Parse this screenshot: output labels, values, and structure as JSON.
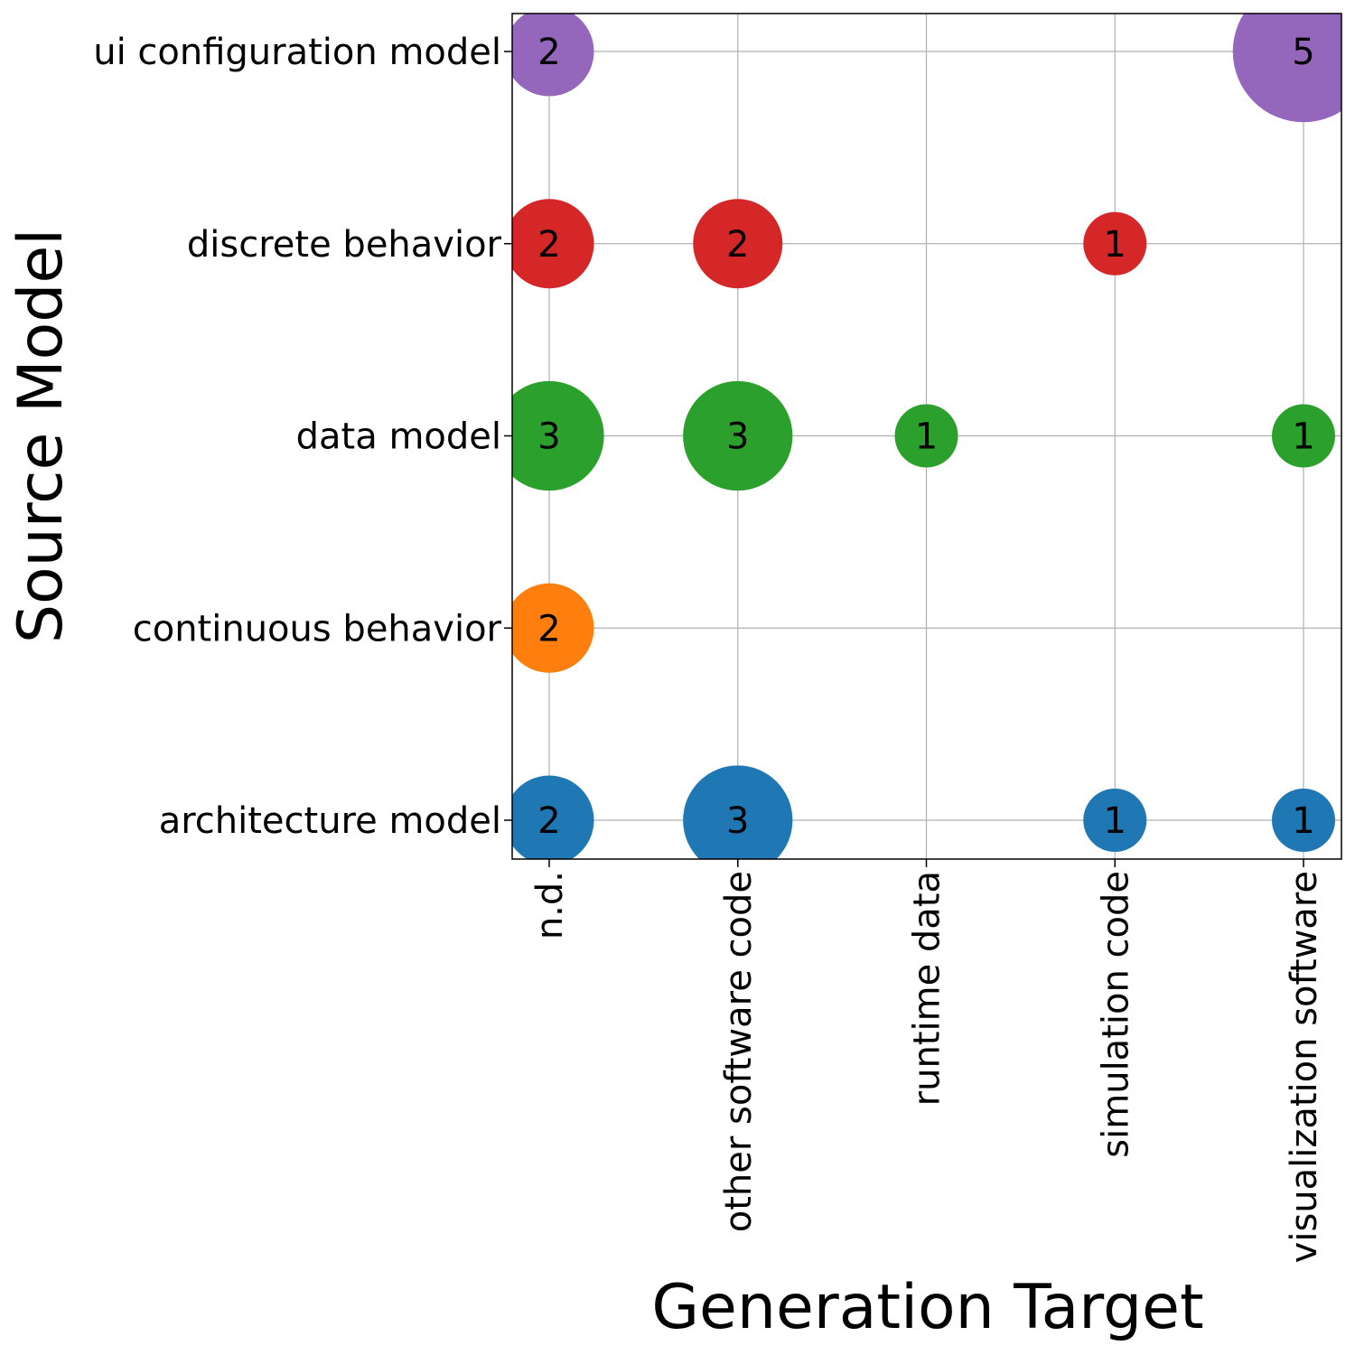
{
  "chart_data": {
    "type": "scatter",
    "xlabel": "Generation Target",
    "ylabel": "Source Model",
    "x_categories": [
      "n.d.",
      "other software code",
      "runtime data",
      "simulation code",
      "visualization software"
    ],
    "y_categories": [
      "architecture model",
      "continuous behavior",
      "data model",
      "discrete behavior",
      "ui configuration model"
    ],
    "grid": true,
    "colors": {
      "architecture model": "#1f77b4",
      "continuous behavior": "#ff7f0e",
      "data model": "#2ca02c",
      "discrete behavior": "#d62728",
      "ui configuration model": "#9467bd"
    },
    "points": [
      {
        "x": "n.d.",
        "y": "architecture model",
        "value": 2,
        "label": "2"
      },
      {
        "x": "other software code",
        "y": "architecture model",
        "value": 3,
        "label": "3"
      },
      {
        "x": "simulation code",
        "y": "architecture model",
        "value": 1,
        "label": "1"
      },
      {
        "x": "visualization software",
        "y": "architecture model",
        "value": 1,
        "label": "1"
      },
      {
        "x": "n.d.",
        "y": "continuous behavior",
        "value": 2,
        "label": "2"
      },
      {
        "x": "n.d.",
        "y": "data model",
        "value": 3,
        "label": "3"
      },
      {
        "x": "other software code",
        "y": "data model",
        "value": 3,
        "label": "3"
      },
      {
        "x": "runtime data",
        "y": "data model",
        "value": 1,
        "label": "1"
      },
      {
        "x": "visualization software",
        "y": "data model",
        "value": 1,
        "label": "1"
      },
      {
        "x": "n.d.",
        "y": "discrete behavior",
        "value": 2,
        "label": "2"
      },
      {
        "x": "other software code",
        "y": "discrete behavior",
        "value": 2,
        "label": "2"
      },
      {
        "x": "simulation code",
        "y": "discrete behavior",
        "value": 1,
        "label": "1"
      },
      {
        "x": "n.d.",
        "y": "ui configuration model",
        "value": 2,
        "label": "2"
      },
      {
        "x": "visualization software",
        "y": "ui configuration model",
        "value": 5,
        "label": "5"
      }
    ]
  }
}
